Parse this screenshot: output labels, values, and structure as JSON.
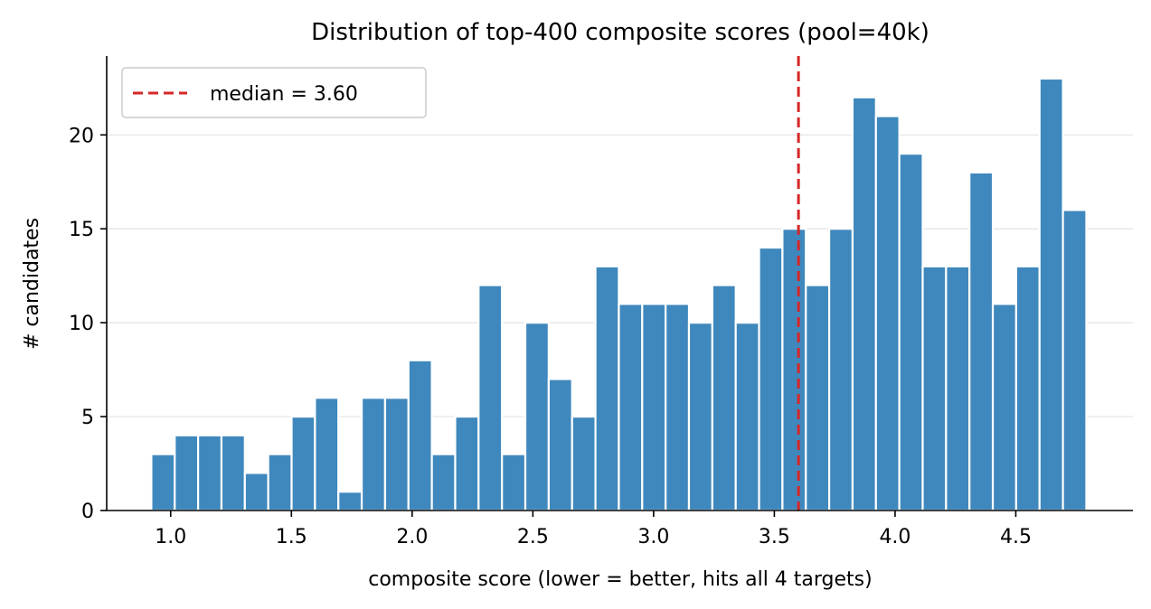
{
  "chart_data": {
    "type": "bar",
    "title": "Distribution of top-400 composite scores (pool=40k)",
    "xlabel": "composite score (lower = better, hits all 4 targets)",
    "ylabel": "# candidates",
    "xlim": [
      0.735,
      4.985
    ],
    "ylim": [
      0,
      24.2
    ],
    "xticks": [
      1.0,
      1.5,
      2.0,
      2.5,
      3.0,
      3.5,
      4.0,
      4.5
    ],
    "xtick_labels": [
      "1.0",
      "1.5",
      "2.0",
      "2.5",
      "3.0",
      "3.5",
      "4.0",
      "4.5"
    ],
    "yticks": [
      0,
      5,
      10,
      15,
      20
    ],
    "ytick_labels": [
      "0",
      "5",
      "10",
      "15",
      "20"
    ],
    "grid": "horizontal",
    "legend_position": "top-left",
    "bar_color": "#3f88bd",
    "bin_start": 0.92,
    "bin_width": 0.0968,
    "values": [
      3,
      4,
      4,
      4,
      2,
      3,
      5,
      6,
      1,
      6,
      6,
      8,
      3,
      5,
      12,
      3,
      10,
      7,
      5,
      13,
      11,
      11,
      11,
      10,
      12,
      10,
      14,
      15,
      12,
      15,
      22,
      21,
      19,
      13,
      13,
      18,
      11,
      13,
      23,
      16
    ],
    "median": {
      "value": 3.6,
      "label": "median = 3.60",
      "color": "#d62728",
      "style": "dashed"
    }
  }
}
